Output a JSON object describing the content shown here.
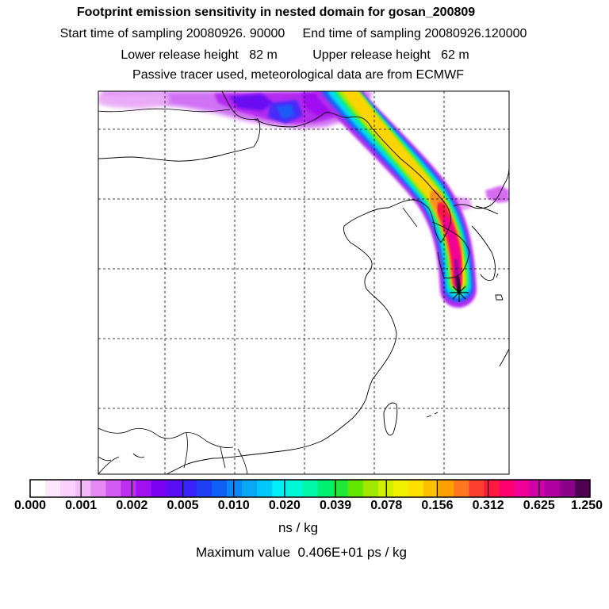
{
  "header": {
    "title": "Footprint emission sensitivity in nested domain for gosan_200809",
    "sampling_line": "Start time of sampling 20080926. 90000     End time of sampling 20080926.120000",
    "release_line": "Lower release height   82 m          Upper release height   62 m",
    "tracer_line": "Passive tracer used, meteorological data are from ECMWF"
  },
  "colorbar": {
    "labels": [
      "0.000",
      "0.001",
      "0.002",
      "0.005",
      "0.010",
      "0.020",
      "0.039",
      "0.078",
      "0.156",
      "0.312",
      "0.625",
      "1.250"
    ],
    "unit": "ns / kg",
    "colors": [
      "#ffffff",
      "#fde8fd",
      "#f8d2fb",
      "#f3b9f9",
      "#e589f5",
      "#d25bf1",
      "#bc2ff0",
      "#a010f0",
      "#7a00f2",
      "#5a0ef5",
      "#3a22f8",
      "#2040f8",
      "#1060f5",
      "#0a88f5",
      "#08a8f5",
      "#00c8f8",
      "#00eef5",
      "#00f8d8",
      "#00f8a8",
      "#00f070",
      "#20e838",
      "#60e800",
      "#a0e800",
      "#d0f000",
      "#f0f000",
      "#ffe000",
      "#ffc000",
      "#ffa000",
      "#ff7820",
      "#ff4030",
      "#ff1840",
      "#ff0070",
      "#f00098",
      "#d000a8",
      "#b000a0",
      "#8a0088",
      "#500050"
    ]
  },
  "max_value": "Maximum value  0.406E+01 ps / kg",
  "map": {
    "receptor_marker": "star-marker"
  }
}
